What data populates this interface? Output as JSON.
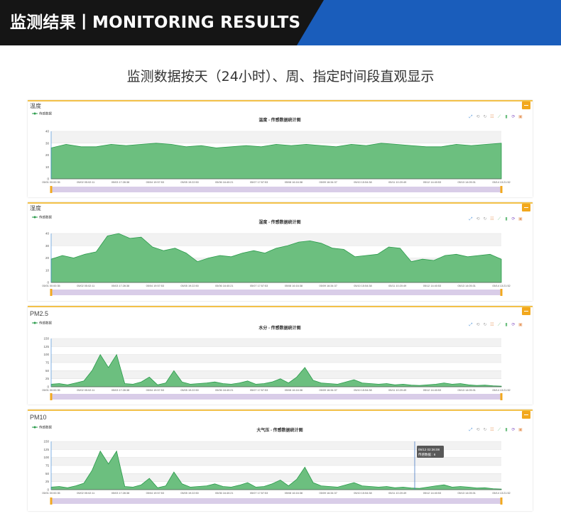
{
  "banner": {
    "title": "监测结果丨MONITORING RESULTS",
    "colors": {
      "dark": "#151515",
      "blue": "#1a5dbb"
    }
  },
  "subtitle": "监测数据按天（24小时）、周、指定时间段直观显示",
  "colors": {
    "area_fill": "#6cbf7f",
    "area_line": "#2a9b4b",
    "panel_border": "#f3c148",
    "slider": "#d9cde8",
    "button": "#f2a81d"
  },
  "common": {
    "legend_label": "传感数据",
    "toolbox_icons": [
      "zoom-icon",
      "reset-zoom-icon",
      "restore-icon",
      "data-view-icon",
      "line-chart-icon",
      "bar-chart-icon",
      "refresh-icon",
      "save-image-icon"
    ],
    "x_ticks": [
      "05/01 00:00:35",
      "05/02 05:02:11",
      "05/03 17:28:38",
      "05/04 19:57:53",
      "05/05 19:22:50",
      "05/06 16:40:21",
      "05/07 17:57:53",
      "05/08 16:16:38",
      "05/09 16:34:37",
      "05/10 15:54:38",
      "05/11 10:20:49",
      "05/12 14:40:53",
      "05/13 14:05:31",
      "05/14 13:21:52"
    ]
  },
  "panels": [
    {
      "label": "温度",
      "chart_title": "温度 - 传感数据统计图"
    },
    {
      "label": "湿度",
      "chart_title": "湿度 - 传感数据统计图"
    },
    {
      "label": "PM2.5",
      "chart_title": "水分 - 传感数据统计图"
    },
    {
      "label": "PM10",
      "chart_title": "大气压 - 传感数据统计图",
      "tooltip": {
        "time": "05/12 02:36:08",
        "series": "传感数据",
        "value": "8"
      }
    }
  ],
  "chart_data": [
    {
      "type": "area",
      "title": "温度 - 传感数据统计图",
      "series": [
        {
          "name": "传感数据",
          "values": [
            26,
            29,
            27,
            27,
            29,
            28,
            29,
            30,
            29,
            27,
            28,
            26,
            27,
            28,
            27,
            29,
            28,
            29,
            28,
            27,
            29,
            28,
            30,
            29,
            28,
            27,
            27,
            29,
            28,
            29,
            30
          ]
        }
      ],
      "ylim": [
        0,
        40
      ],
      "yticks": [
        0,
        10,
        20,
        30,
        40
      ]
    },
    {
      "type": "area",
      "title": "湿度 - 传感数据统计图",
      "series": [
        {
          "name": "传感数据",
          "values": [
            19,
            22,
            20,
            23,
            25,
            38,
            40,
            36,
            37,
            29,
            26,
            28,
            24,
            17,
            20,
            22,
            21,
            24,
            26,
            24,
            28,
            30,
            33,
            34,
            32,
            28,
            27,
            21,
            22,
            23,
            29,
            28,
            17,
            19,
            18,
            22,
            23,
            21,
            22,
            23,
            19
          ]
        }
      ],
      "ylim": [
        0,
        40
      ],
      "yticks": [
        0,
        10,
        20,
        30,
        40
      ]
    },
    {
      "type": "area",
      "title": "水分 - 传感数据统计图",
      "series": [
        {
          "name": "传感数据",
          "values": [
            8,
            10,
            6,
            12,
            18,
            50,
            100,
            60,
            100,
            10,
            8,
            15,
            30,
            6,
            12,
            50,
            15,
            8,
            10,
            12,
            15,
            10,
            8,
            12,
            18,
            8,
            10,
            15,
            25,
            12,
            30,
            60,
            20,
            12,
            10,
            8,
            15,
            22,
            12,
            10,
            8,
            10,
            6,
            8,
            5,
            4,
            6,
            8,
            12,
            8,
            10,
            6,
            4,
            5,
            3,
            2
          ]
        }
      ],
      "ylim": [
        0,
        150
      ],
      "yticks": [
        0,
        25,
        50,
        75,
        100,
        125,
        150
      ]
    },
    {
      "type": "area",
      "title": "大气压 - 传感数据统计图",
      "series": [
        {
          "name": "传感数据",
          "values": [
            8,
            10,
            6,
            12,
            20,
            60,
            120,
            80,
            120,
            10,
            8,
            15,
            35,
            6,
            12,
            55,
            18,
            8,
            10,
            12,
            18,
            10,
            8,
            14,
            22,
            8,
            10,
            18,
            30,
            12,
            32,
            70,
            22,
            12,
            10,
            8,
            15,
            22,
            12,
            10,
            8,
            10,
            6,
            8,
            5,
            4,
            8,
            12,
            15,
            8,
            10,
            8,
            5,
            6,
            3,
            2
          ]
        }
      ],
      "ylim": [
        0,
        150
      ],
      "yticks": [
        0,
        25,
        50,
        75,
        100,
        125,
        150
      ]
    }
  ]
}
